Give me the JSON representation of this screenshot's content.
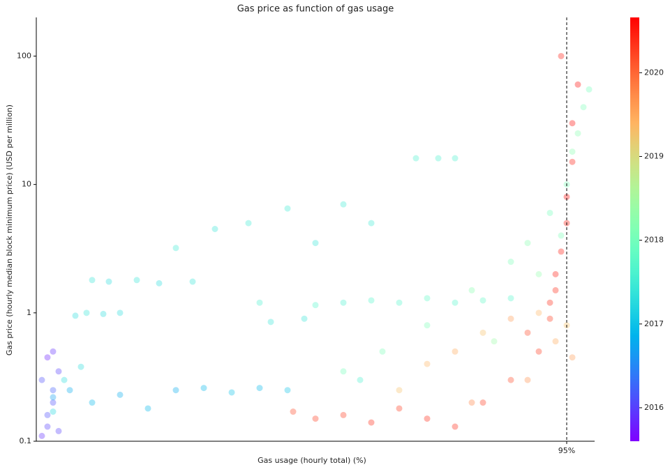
{
  "chart_data": {
    "type": "scatter",
    "title": "Gas price as function of gas usage",
    "x_label": "Gas usage (hourly total) (%)",
    "y_label": "Gas price (hourly median block minimum price) (USD per million)",
    "xlim": [
      0,
      100
    ],
    "xticks": [
      {
        "value": 95,
        "label": "95%"
      }
    ],
    "vline_x": 95,
    "ylim": [
      0.1,
      200
    ],
    "y_log": true,
    "yticks": [
      0.1,
      1,
      10,
      100
    ],
    "colormap": "rainbow",
    "clim": [
      2015.6,
      2020.66
    ],
    "cticks": [
      2016,
      2017,
      2018,
      2019,
      2020
    ],
    "x": [
      1,
      2,
      3,
      4,
      2,
      3,
      1,
      4,
      3,
      2,
      3,
      6,
      10,
      15,
      20,
      25,
      30,
      35,
      40,
      45,
      3,
      5,
      8,
      7,
      9,
      12,
      15,
      10,
      13,
      18,
      22,
      28,
      25,
      32,
      38,
      45,
      50,
      55,
      60,
      42,
      48,
      68,
      72,
      75,
      40,
      50,
      55,
      60,
      65,
      70,
      75,
      80,
      85,
      58,
      55,
      62,
      70,
      78,
      85,
      88,
      92,
      95,
      97,
      98,
      99,
      96,
      94,
      90,
      82,
      65,
      70,
      75,
      80,
      85,
      90,
      93,
      95,
      96,
      88,
      78,
      46,
      50,
      55,
      60,
      65,
      70,
      75,
      80,
      85,
      90,
      92,
      93,
      94,
      95,
      95,
      96,
      96,
      97,
      94,
      93,
      92,
      88
    ],
    "values": [
      0.11,
      0.13,
      0.2,
      0.35,
      0.45,
      0.5,
      0.3,
      0.12,
      0.25,
      0.16,
      0.22,
      0.25,
      0.2,
      0.23,
      0.18,
      0.25,
      0.26,
      0.24,
      0.26,
      0.25,
      0.17,
      0.3,
      0.38,
      0.95,
      1.0,
      0.98,
      1.0,
      1.8,
      1.75,
      1.8,
      1.7,
      1.75,
      3.2,
      4.5,
      5,
      6.5,
      3.5,
      7,
      5,
      0.85,
      0.9,
      16,
      16,
      16,
      1.2,
      1.15,
      1.2,
      1.25,
      1.2,
      1.3,
      1.2,
      1.25,
      1.3,
      0.3,
      0.35,
      0.5,
      0.8,
      1.5,
      2.5,
      3.5,
      6,
      10,
      25,
      40,
      55,
      18,
      4,
      2,
      0.6,
      0.25,
      0.4,
      0.5,
      0.7,
      0.9,
      1.0,
      0.6,
      0.8,
      0.45,
      0.3,
      0.2,
      0.17,
      0.15,
      0.16,
      0.14,
      0.18,
      0.15,
      0.13,
      0.2,
      0.3,
      0.5,
      1.2,
      2,
      3,
      5,
      8,
      15,
      30,
      60,
      100,
      1.5,
      0.9,
      0.7
    ],
    "c": [
      2015.9,
      2016.0,
      2016.1,
      2016.0,
      2015.8,
      2015.9,
      2016.1,
      2016.0,
      2016.2,
      2016.1,
      2016.7,
      2016.8,
      2016.9,
      2016.8,
      2016.9,
      2016.8,
      2016.9,
      2017.0,
      2016.9,
      2017.0,
      2017.2,
      2017.3,
      2017.3,
      2017.3,
      2017.4,
      2017.3,
      2017.3,
      2017.4,
      2017.3,
      2017.4,
      2017.3,
      2017.4,
      2017.5,
      2017.4,
      2017.5,
      2017.5,
      2017.4,
      2017.5,
      2017.5,
      2017.4,
      2017.4,
      2017.6,
      2017.6,
      2017.6,
      2017.6,
      2017.7,
      2017.6,
      2017.7,
      2017.7,
      2017.8,
      2017.7,
      2017.8,
      2017.7,
      2017.6,
      2018.0,
      2018.1,
      2018.1,
      2018.2,
      2018.1,
      2018.2,
      2018.0,
      2018.1,
      2018.2,
      2018.1,
      2018.0,
      2018.2,
      2018.1,
      2018.3,
      2018.4,
      2019.3,
      2019.4,
      2019.5,
      2019.3,
      2019.6,
      2019.4,
      2019.5,
      2019.3,
      2019.6,
      2019.7,
      2019.8,
      2020.2,
      2020.3,
      2020.3,
      2020.4,
      2020.3,
      2020.4,
      2020.4,
      2020.3,
      2020.2,
      2020.3,
      2020.4,
      2020.5,
      2020.5,
      2020.5,
      2020.6,
      2020.5,
      2020.6,
      2020.6,
      2020.5,
      2020.4,
      2020.3,
      2020.2
    ]
  }
}
